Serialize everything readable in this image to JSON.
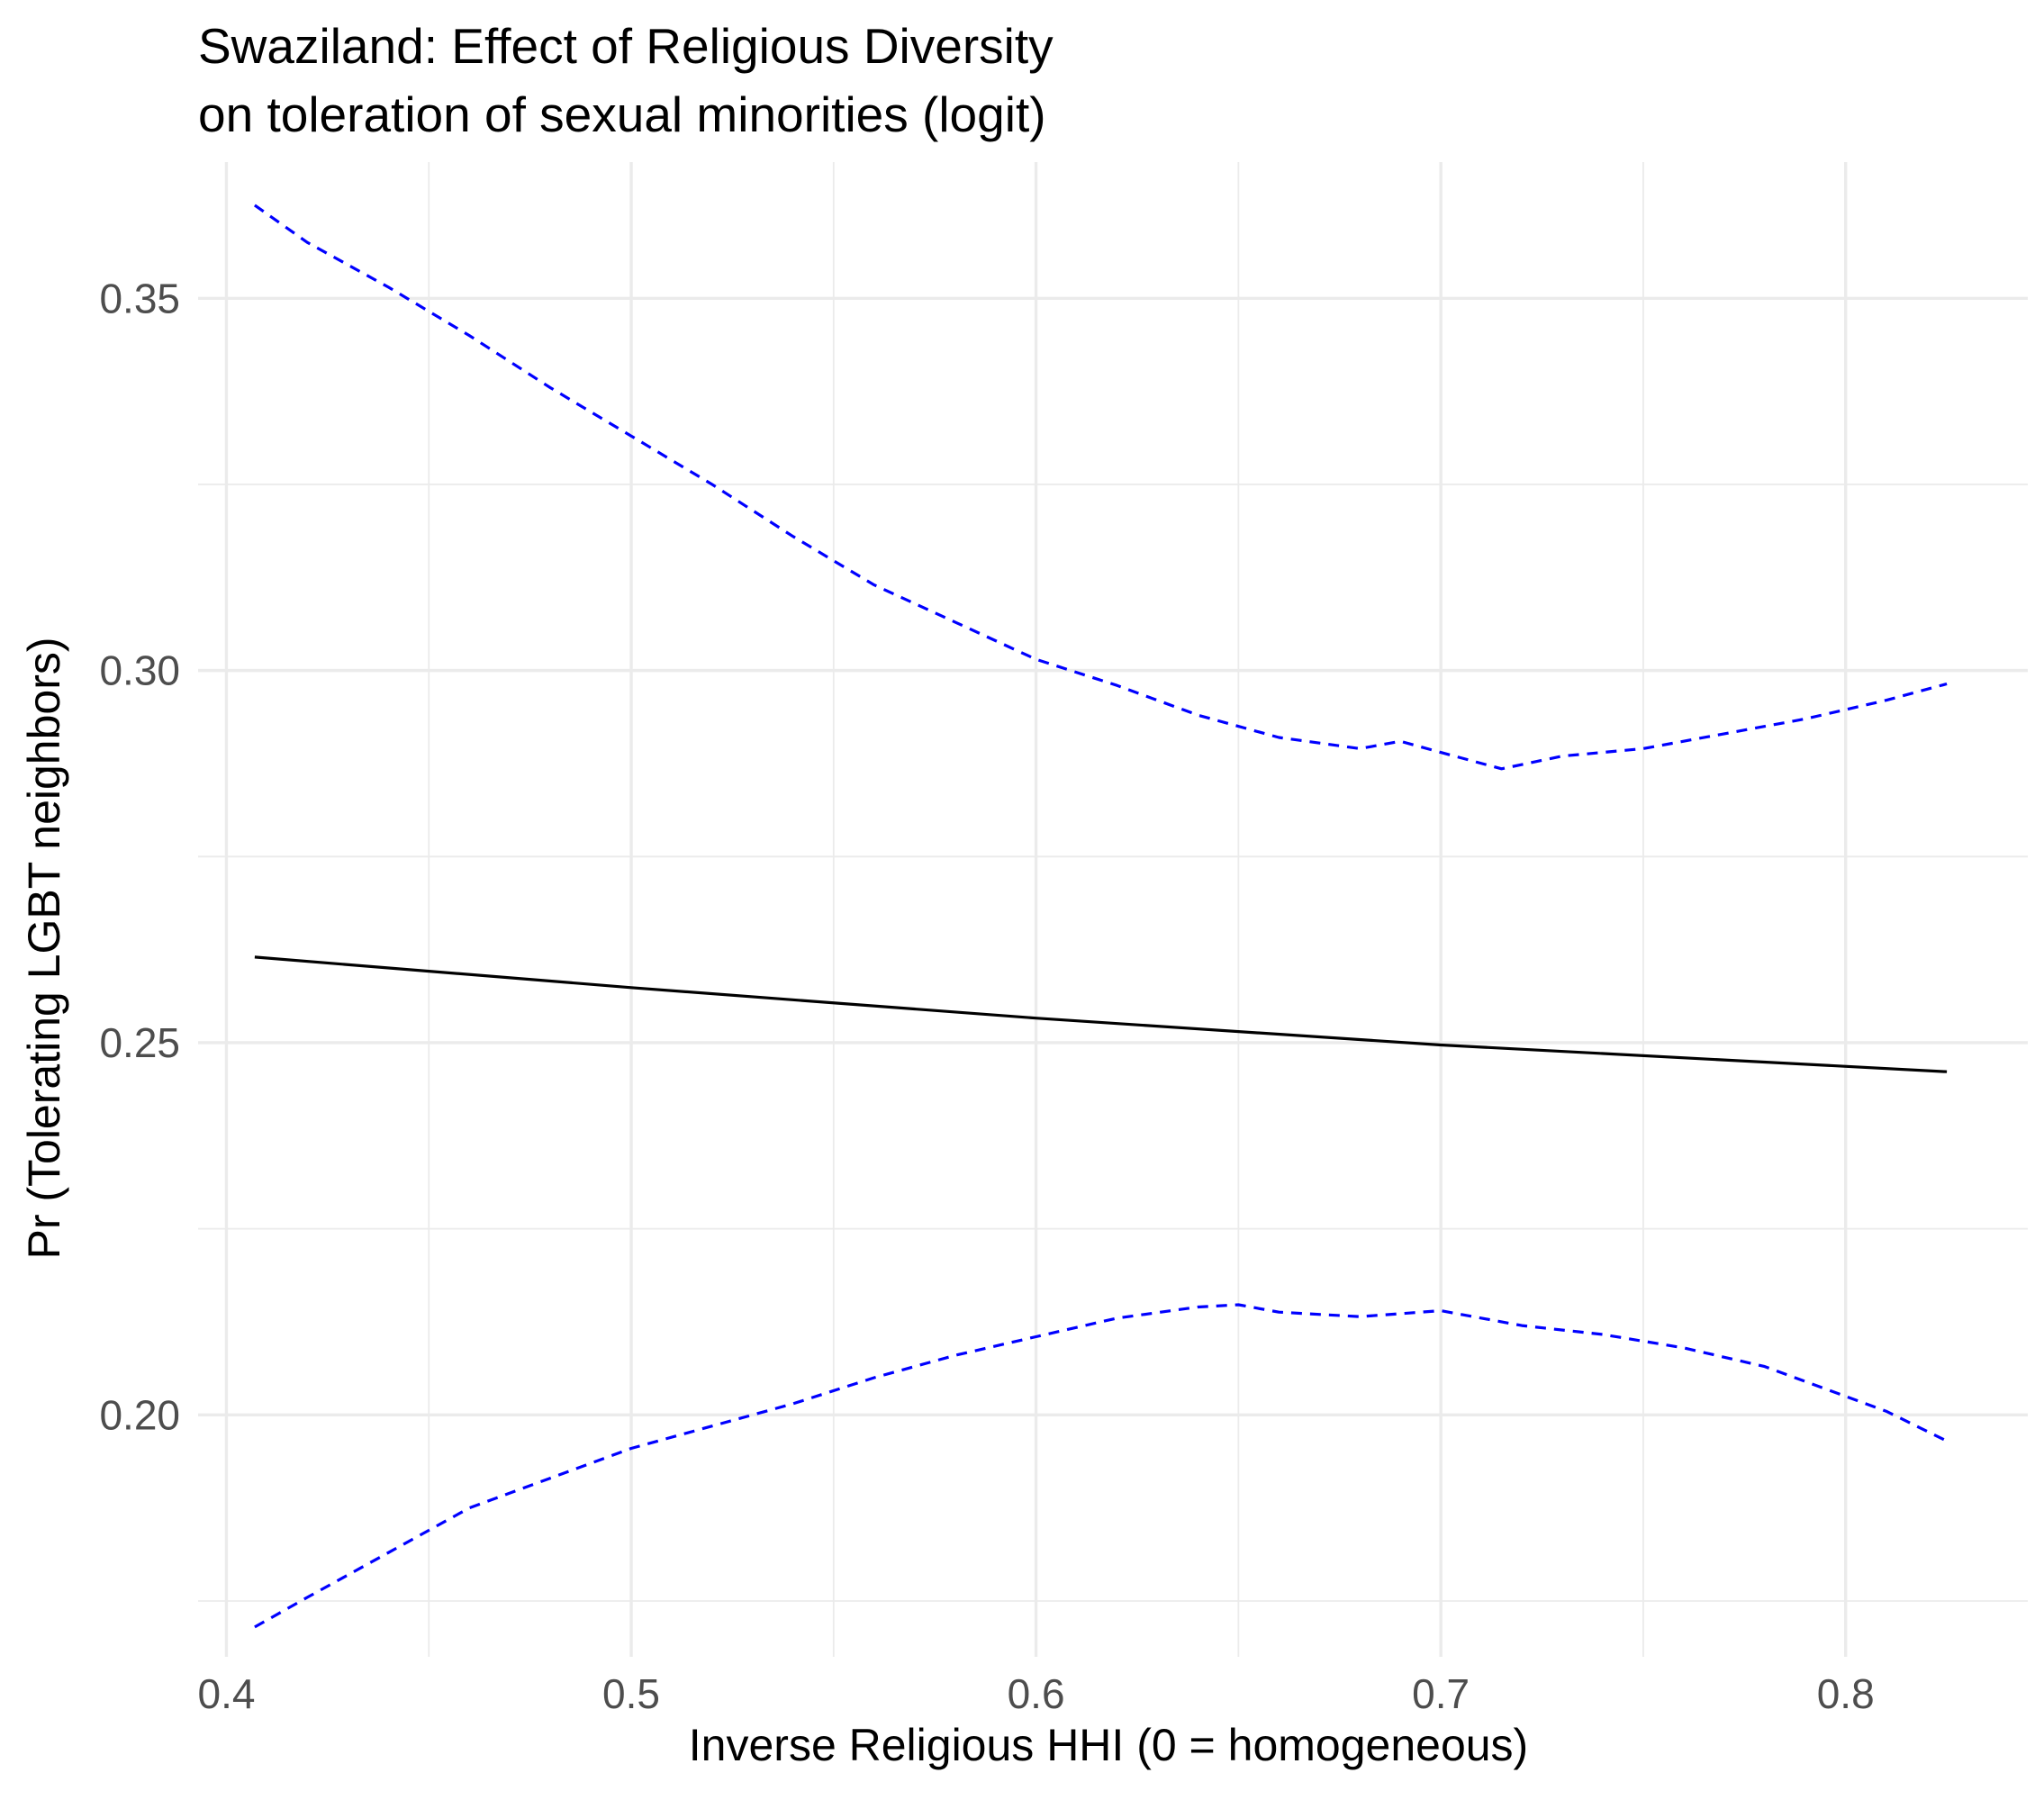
{
  "chart_data": {
    "type": "line",
    "title": "Swaziland: Effect of Religious Diversity",
    "subtitle": "on toleration of sexual minorities (logit)",
    "xlabel": "Inverse Religious HHI (0 = homogeneous)",
    "ylabel": "Pr (Tolerating LGBT neighbors)",
    "xlim": [
      0.393,
      0.845
    ],
    "ylim": [
      0.1675,
      0.3683
    ],
    "x_ticks": [
      0.4,
      0.5,
      0.6,
      0.7,
      0.8
    ],
    "x_tick_labels": [
      "0.4",
      "0.5",
      "0.6",
      "0.7",
      "0.8"
    ],
    "x_minor_ticks": [
      0.45,
      0.55,
      0.65,
      0.75
    ],
    "y_ticks": [
      0.2,
      0.25,
      0.3,
      0.35
    ],
    "y_tick_labels": [
      "0.20",
      "0.25",
      "0.30",
      "0.35"
    ],
    "y_minor_ticks": [
      0.175,
      0.225,
      0.275,
      0.325
    ],
    "grid": true,
    "series": [
      {
        "role": "estimate",
        "line_style": "solid",
        "color": "#000000",
        "x": [
          0.407,
          0.5,
          0.6,
          0.7,
          0.825
        ],
        "y": [
          0.2615,
          0.2574,
          0.2533,
          0.2497,
          0.2461
        ]
      },
      {
        "role": "upper_ci",
        "line_style": "dashed",
        "color": "#0000ff",
        "x": [
          0.407,
          0.42,
          0.44,
          0.46,
          0.48,
          0.5,
          0.52,
          0.54,
          0.56,
          0.58,
          0.6,
          0.62,
          0.64,
          0.66,
          0.68,
          0.69,
          0.7,
          0.715,
          0.73,
          0.75,
          0.77,
          0.79,
          0.81,
          0.825
        ],
        "y": [
          0.3625,
          0.3575,
          0.3515,
          0.345,
          0.338,
          0.3315,
          0.325,
          0.318,
          0.3115,
          0.3065,
          0.3015,
          0.298,
          0.294,
          0.291,
          0.2895,
          0.2905,
          0.289,
          0.2868,
          0.2885,
          0.2895,
          0.2915,
          0.2935,
          0.296,
          0.2982
        ]
      },
      {
        "role": "lower_ci",
        "line_style": "dashed",
        "color": "#0000ff",
        "x": [
          0.407,
          0.42,
          0.44,
          0.46,
          0.48,
          0.5,
          0.52,
          0.54,
          0.56,
          0.58,
          0.6,
          0.62,
          0.64,
          0.65,
          0.66,
          0.68,
          0.7,
          0.72,
          0.74,
          0.76,
          0.78,
          0.8,
          0.81,
          0.825
        ],
        "y": [
          0.1715,
          0.1755,
          0.1815,
          0.1875,
          0.1915,
          0.1955,
          0.1985,
          0.2015,
          0.205,
          0.208,
          0.2105,
          0.213,
          0.2145,
          0.2148,
          0.2138,
          0.2132,
          0.214,
          0.212,
          0.2108,
          0.209,
          0.2065,
          0.2025,
          0.2005,
          0.1965
        ]
      }
    ]
  }
}
